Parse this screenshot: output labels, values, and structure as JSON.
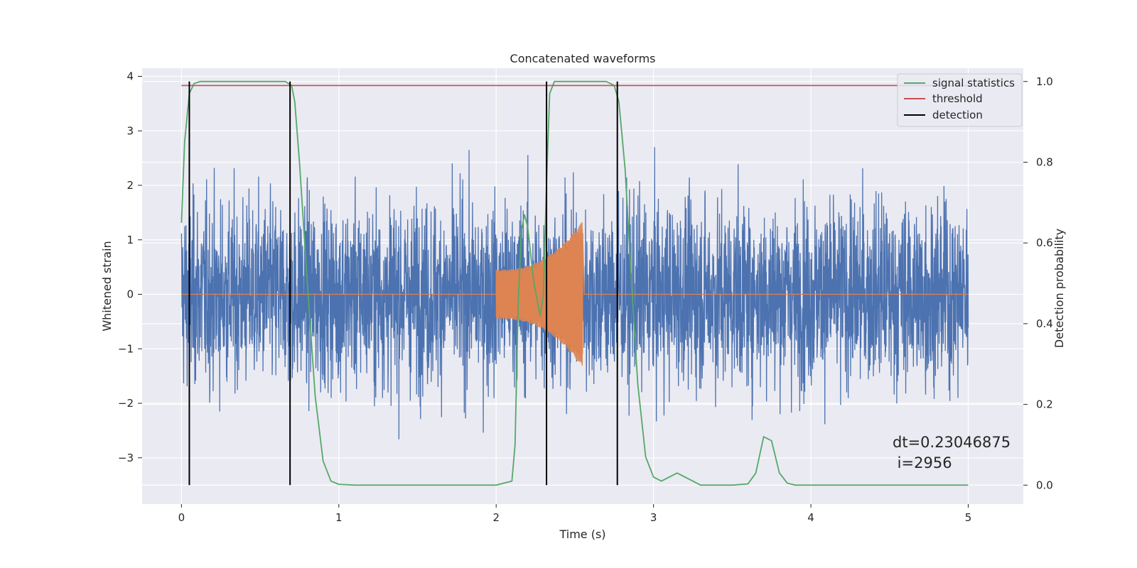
{
  "chart_data": {
    "type": "line",
    "title": "Concatenated waveforms",
    "xlabel": "Time (s)",
    "ylabel": "Whitened strain",
    "y2label": "Detection probability",
    "xlim": [
      -0.25,
      5.35
    ],
    "ylim": [
      -3.85,
      4.15
    ],
    "y2lim": [
      -0.047,
      1.033
    ],
    "xticks": [
      0,
      1,
      2,
      3,
      4,
      5
    ],
    "yticks": [
      -3,
      -2,
      -1,
      0,
      1,
      2,
      3,
      4
    ],
    "y2ticks": [
      0.0,
      0.2,
      0.4,
      0.6,
      0.8,
      1.0
    ],
    "xtick_labels": [
      "0",
      "1",
      "2",
      "3",
      "4",
      "5"
    ],
    "ytick_labels": [
      "−3",
      "−2",
      "−1",
      "0",
      "1",
      "2",
      "3",
      "4"
    ],
    "y2tick_labels": [
      "0.0",
      "0.2",
      "0.4",
      "0.6",
      "0.8",
      "1.0"
    ],
    "grid": true,
    "legend_position": "top-right",
    "legend": [
      "signal statistics",
      "threshold",
      "detection"
    ],
    "colors": {
      "strain": "#4c72b0",
      "injection": "#dd8452",
      "signal": "#55a868",
      "threshold": "#c44e52",
      "detection": "#000000",
      "background": "#eaeaf2",
      "grid": "#ffffff"
    },
    "series": [
      {
        "axis": "left",
        "kind": "noise",
        "x_range": [
          0,
          5
        ],
        "envelope_approx": 2.9
      },
      {
        "axis": "left",
        "kind": "chirp",
        "x_range": [
          2.0,
          2.55
        ],
        "amplitude_start": 0.45,
        "amplitude_end": 1.35
      },
      {
        "name": "signal statistics",
        "axis": "right",
        "x": [
          0,
          0.02,
          0.05,
          0.08,
          0.12,
          0.2,
          0.4,
          0.6,
          0.66,
          0.7,
          0.72,
          0.75,
          0.8,
          0.85,
          0.9,
          0.95,
          1.0,
          1.1,
          1.5,
          2.0,
          2.1,
          2.12,
          2.14,
          2.16,
          2.18,
          2.2,
          2.24,
          2.28,
          2.3,
          2.32,
          2.34,
          2.37,
          2.4,
          2.5,
          2.7,
          2.75,
          2.78,
          2.82,
          2.86,
          2.9,
          2.95,
          3.0,
          3.05,
          3.1,
          3.15,
          3.2,
          3.3,
          3.4,
          3.5,
          3.6,
          3.65,
          3.7,
          3.75,
          3.8,
          3.85,
          3.9,
          4.0,
          4.5,
          5.0
        ],
        "y": [
          0.65,
          0.85,
          0.97,
          0.995,
          1.0,
          1.0,
          1.0,
          1.0,
          1.0,
          0.99,
          0.95,
          0.8,
          0.5,
          0.22,
          0.06,
          0.01,
          0.002,
          0.0,
          0.0,
          0.0,
          0.01,
          0.1,
          0.45,
          0.63,
          0.67,
          0.64,
          0.5,
          0.42,
          0.47,
          0.75,
          0.97,
          1.0,
          1.0,
          1.0,
          1.0,
          0.99,
          0.95,
          0.78,
          0.5,
          0.25,
          0.07,
          0.02,
          0.01,
          0.02,
          0.03,
          0.02,
          0.0,
          0.0,
          0.0,
          0.003,
          0.03,
          0.12,
          0.11,
          0.03,
          0.005,
          0.0,
          0.0,
          0.0,
          0.0
        ]
      },
      {
        "name": "threshold",
        "axis": "right",
        "x": [
          0,
          5
        ],
        "y": [
          0.99,
          0.99
        ]
      },
      {
        "name": "detection",
        "axis": "right",
        "type": "vlines",
        "x": [
          0.05,
          0.69,
          2.32,
          2.77
        ],
        "y_range": [
          0.0,
          1.0
        ]
      }
    ],
    "annotation": "dt=0.23046875\n i=2956",
    "annotation_lines": [
      "dt=0.23046875",
      " i=2956"
    ]
  }
}
